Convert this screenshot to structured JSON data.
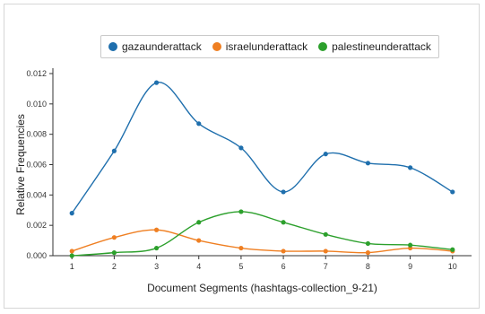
{
  "chart_data": {
    "type": "line",
    "title": "",
    "xlabel": "Document Segments (hashtags-collection_9-21)",
    "ylabel": "Relative Frequencies",
    "x": [
      1,
      2,
      3,
      4,
      5,
      6,
      7,
      8,
      9,
      10
    ],
    "xlim": [
      0.55,
      10.45
    ],
    "ylim": [
      0,
      0.012
    ],
    "yticks": [
      "0.000",
      "0.002",
      "0.004",
      "0.006",
      "0.008",
      "0.010",
      "0.012"
    ],
    "xticks": [
      "1",
      "2",
      "3",
      "4",
      "5",
      "6",
      "7",
      "8",
      "9",
      "10"
    ],
    "grid": false,
    "legend_position": "top",
    "series": [
      {
        "name": "gazaunderattack",
        "color": "#1f6fad",
        "values": [
          0.0028,
          0.0069,
          0.0114,
          0.0087,
          0.0071,
          0.0042,
          0.0067,
          0.0061,
          0.0058,
          0.0042
        ]
      },
      {
        "name": "israelunderattack",
        "color": "#ef7f22",
        "values": [
          0.0003,
          0.0012,
          0.0017,
          0.001,
          0.0005,
          0.0003,
          0.0003,
          0.0002,
          0.0005,
          0.0003
        ]
      },
      {
        "name": "palestineunderattack",
        "color": "#2ca02c",
        "values": [
          0.0,
          0.0002,
          0.0005,
          0.0022,
          0.0029,
          0.0022,
          0.0014,
          0.0008,
          0.0007,
          0.0004
        ]
      }
    ]
  }
}
